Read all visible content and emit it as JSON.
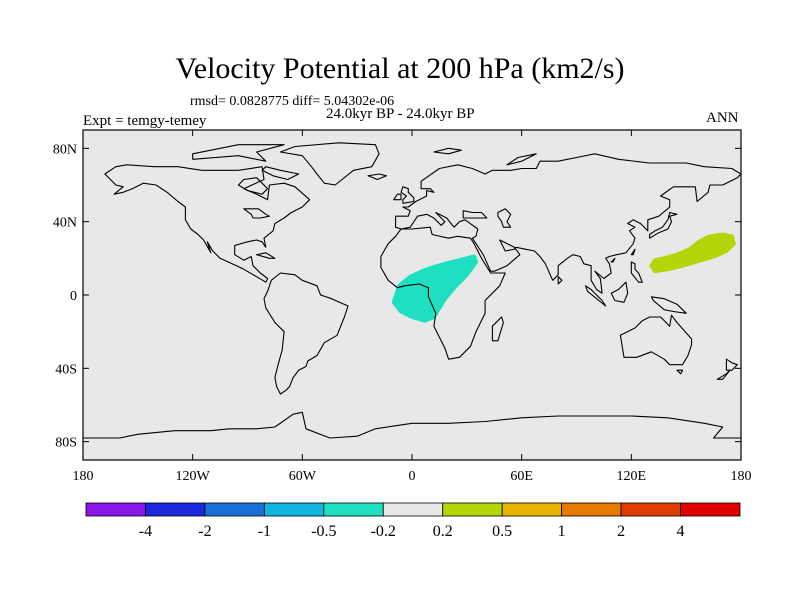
{
  "title": "Velocity Potential at 200 hPa (km2/s)",
  "stats": "rmsd= 0.0828775  diff= 5.04302e-06",
  "expt": "Expt = temgy-temey",
  "period": "24.0kyr BP - 24.0kyr BP",
  "season": "ANN",
  "map": {
    "background": "#e8e8e8",
    "lon_range": [
      -180,
      180
    ],
    "lat_range": [
      -90,
      90
    ],
    "x_ticks": [
      {
        "lon": -180,
        "label": "180"
      },
      {
        "lon": -120,
        "label": "120W"
      },
      {
        "lon": -60,
        "label": "60W"
      },
      {
        "lon": 0,
        "label": "0"
      },
      {
        "lon": 60,
        "label": "60E"
      },
      {
        "lon": 120,
        "label": "120E"
      },
      {
        "lon": 180,
        "label": "180"
      }
    ],
    "y_ticks": [
      {
        "lat": 80,
        "label": "80N"
      },
      {
        "lat": 40,
        "label": "40N"
      },
      {
        "lat": 0,
        "label": "0"
      },
      {
        "lat": -40,
        "label": "40S"
      },
      {
        "lat": -80,
        "label": "80S"
      }
    ],
    "anomalies": [
      {
        "name": "equatorial-africa-negative",
        "range": "-0.5 to -0.2",
        "color": "#1ee0c0",
        "outline": [
          [
            -10,
            -4
          ],
          [
            -7,
            5
          ],
          [
            -1,
            10
          ],
          [
            8,
            14
          ],
          [
            18,
            17
          ],
          [
            26,
            19
          ],
          [
            34,
            21
          ],
          [
            35,
            18
          ],
          [
            30,
            11
          ],
          [
            24,
            5
          ],
          [
            18,
            -2
          ],
          [
            12,
            -12
          ],
          [
            7,
            -14
          ],
          [
            0,
            -12
          ],
          [
            -6,
            -9
          ]
        ]
      },
      {
        "name": "western-pacific-positive",
        "range": "0.2 to 0.5",
        "color": "#b4d50a",
        "outline": [
          [
            131,
            16
          ],
          [
            133,
            19
          ],
          [
            138,
            20
          ],
          [
            145,
            22
          ],
          [
            152,
            25
          ],
          [
            157,
            29
          ],
          [
            163,
            32
          ],
          [
            170,
            33
          ],
          [
            175,
            32
          ],
          [
            176,
            28
          ],
          [
            172,
            24
          ],
          [
            165,
            21
          ],
          [
            155,
            18
          ],
          [
            148,
            16
          ],
          [
            140,
            14
          ],
          [
            133,
            13
          ]
        ]
      }
    ]
  },
  "colorbar": {
    "colors": [
      "#8a16e8",
      "#1c28dc",
      "#1870d8",
      "#10b6e0",
      "#1ee0c0",
      "#e8e8e8",
      "#b4d50a",
      "#e6b400",
      "#e47a00",
      "#e03c00",
      "#e00000"
    ],
    "labels": [
      "-4",
      "-2",
      "-1",
      "-0.5",
      "-0.2",
      "0.2",
      "0.5",
      "1",
      "2",
      "4"
    ]
  }
}
